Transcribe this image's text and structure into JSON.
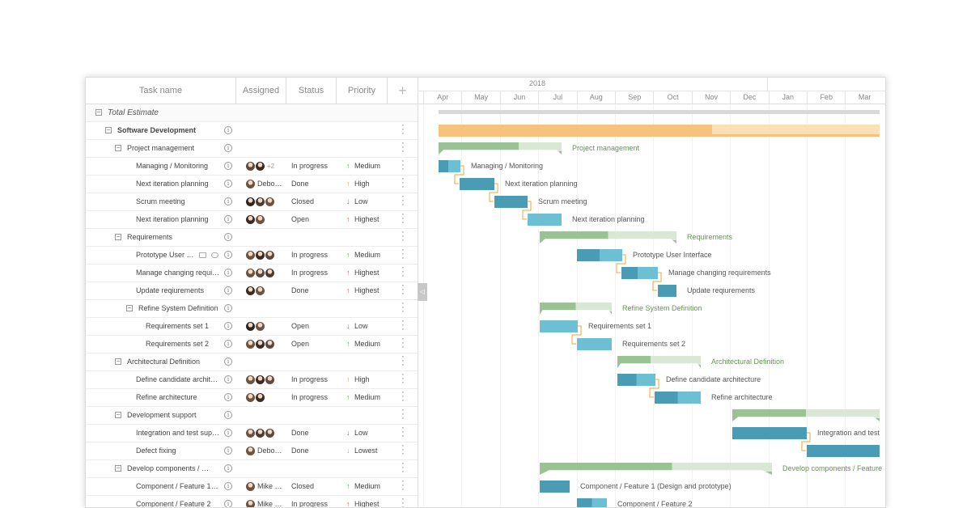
{
  "header": {
    "task_name": "Task name",
    "assigned": "Assigned",
    "status": "Status",
    "priority": "Priority",
    "add": "+"
  },
  "timeline": {
    "year": "2018",
    "months": [
      "Apr",
      "May",
      "Jun",
      "Jul",
      "Aug",
      "Sep",
      "Oct",
      "Nov",
      "Dec",
      "Jan",
      "Feb",
      "Mar"
    ]
  },
  "colors": {
    "summary": "#9bc294",
    "summary_light": "#d9e8d5",
    "task_dark": "#4a9bb4",
    "task_light": "#6dbfd3",
    "project": "#f6c27e",
    "project_light": "#fbe0b5",
    "link": "#f0a437",
    "group_text": "#5b9a4b"
  },
  "rows": [
    {
      "name": "Total Estimate",
      "level": 0,
      "type": "total",
      "toggle": "−"
    },
    {
      "name": "Software Development",
      "level": 1,
      "type": "project",
      "toggle": "−"
    },
    {
      "name": "Project management",
      "level": 2,
      "type": "group",
      "toggle": "−"
    },
    {
      "name": "Managing / Monitoring",
      "level": 3,
      "type": "task",
      "avatars": [
        "#5a4a3e",
        "#3a2a22"
      ],
      "extra": "+2",
      "status": "In progress",
      "arrow": "↑",
      "arrow_color": "#4caf50",
      "priority": "Medium"
    },
    {
      "name": "Next iteration planning",
      "level": 3,
      "type": "task",
      "avatars": [
        "#6b5342"
      ],
      "aname": "Debo…",
      "status": "Done",
      "arrow": "↑",
      "arrow_color": "#f0a437",
      "priority": "High"
    },
    {
      "name": "Scrum meeting",
      "level": 3,
      "type": "task",
      "avatars": [
        "#2f2520",
        "#4a3a30",
        "#6b5342"
      ],
      "status": "Closed",
      "arrow": "↓",
      "arrow_color": "#777",
      "priority": "Low"
    },
    {
      "name": "Next iteration planning",
      "level": 3,
      "type": "task",
      "avatars": [
        "#3a2a22",
        "#6b5342"
      ],
      "status": "Open",
      "arrow": "↑",
      "arrow_color": "#e25b45",
      "priority": "Highest"
    },
    {
      "name": "Requirements",
      "level": 2,
      "type": "group",
      "toggle": "−"
    },
    {
      "name": "Prototype User …",
      "level": 3,
      "type": "task",
      "icons": true,
      "avatars": [
        "#6b5342",
        "#3a2a22",
        "#5a4a3e"
      ],
      "status": "In progress",
      "arrow": "↑",
      "arrow_color": "#4caf50",
      "priority": "Medium"
    },
    {
      "name": "Manage changing requi…",
      "level": 3,
      "type": "task",
      "avatars": [
        "#6b5342",
        "#5a4a3e",
        "#4a3a30"
      ],
      "status": "In progress",
      "arrow": "↑",
      "arrow_color": "#e25b45",
      "priority": "Highest"
    },
    {
      "name": "Update reqiurements",
      "level": 3,
      "type": "task",
      "avatars": [
        "#3a2a22",
        "#6b5342"
      ],
      "status": "Done",
      "arrow": "↑",
      "arrow_color": "#e25b45",
      "priority": "Highest"
    },
    {
      "name": "Refine System Definition",
      "level": 3,
      "type": "group",
      "toggle": "−"
    },
    {
      "name": "Requirements set 1",
      "level": 4,
      "type": "task",
      "avatars": [
        "#2f2520",
        "#6b5342"
      ],
      "status": "Open",
      "arrow": "↓",
      "arrow_color": "#777",
      "priority": "Low"
    },
    {
      "name": "Requirements set 2",
      "level": 4,
      "type": "task",
      "avatars": [
        "#6b5342",
        "#3a2a22",
        "#5a4a3e"
      ],
      "status": "Open",
      "arrow": "↑",
      "arrow_color": "#4caf50",
      "priority": "Medium"
    },
    {
      "name": "Architectural Definition",
      "level": 2,
      "type": "group",
      "toggle": "−"
    },
    {
      "name": "Define candidate archit…",
      "level": 3,
      "type": "task",
      "avatars": [
        "#6b5342",
        "#3a2a22",
        "#5a4a3e"
      ],
      "status": "In progress",
      "arrow": "↑",
      "arrow_color": "#f0a437",
      "priority": "High"
    },
    {
      "name": "Refine architecture",
      "level": 3,
      "type": "task",
      "avatars": [
        "#6b5342",
        "#3a2a22"
      ],
      "status": "In progress",
      "arrow": "↑",
      "arrow_color": "#4caf50",
      "priority": "Medium"
    },
    {
      "name": "Development support",
      "level": 2,
      "type": "group",
      "toggle": "−"
    },
    {
      "name": "Integration and test sup…",
      "level": 3,
      "type": "task",
      "avatars": [
        "#6b5342",
        "#4a3a30",
        "#5a4a3e"
      ],
      "status": "Done",
      "arrow": "↓",
      "arrow_color": "#777",
      "priority": "Low"
    },
    {
      "name": "Defect fixing",
      "level": 3,
      "type": "task",
      "avatars": [
        "#6b5342"
      ],
      "aname": "Debo…",
      "status": "Done",
      "arrow": "↓",
      "arrow_color": "#aaa",
      "priority": "Lowest"
    },
    {
      "name": "Develop components / Fea…",
      "level": 2,
      "type": "group",
      "toggle": "−"
    },
    {
      "name": "Component / Feature 1 …",
      "level": 3,
      "type": "task",
      "avatars": [
        "#6b5342"
      ],
      "aname": "Mike …",
      "status": "Closed",
      "arrow": "↑",
      "arrow_color": "#4caf50",
      "priority": "Medium"
    },
    {
      "name": "Component / Feature 2",
      "level": 3,
      "type": "task",
      "avatars": [
        "#6b5342"
      ],
      "aname": "Mike …",
      "status": "In progress",
      "arrow": "↑",
      "arrow_color": "#e25b45",
      "priority": "Highest"
    }
  ],
  "bars": [
    {
      "label": ""
    },
    {
      "label": ""
    },
    {
      "label": "Project management"
    },
    {
      "label": "Managing / Monitoring"
    },
    {
      "label": "Next iteration planning"
    },
    {
      "label": "Scrum meeting"
    },
    {
      "label": "Next iteration planning"
    },
    {
      "label": "Requirements"
    },
    {
      "label": "Prototype User Interface"
    },
    {
      "label": "Manage changing requirements"
    },
    {
      "label": "Update reqiurements"
    },
    {
      "label": "Refine System Definition"
    },
    {
      "label": "Requirements set 1"
    },
    {
      "label": "Requirements set 2"
    },
    {
      "label": "Architectural Definition"
    },
    {
      "label": "Define candidate architecture"
    },
    {
      "label": "Refine architecture"
    },
    {
      "label": ""
    },
    {
      "label": "Integration and test"
    },
    {
      "label": ""
    },
    {
      "label": "Develop components / Feature"
    },
    {
      "label": "Component / Feature 1 (Design and prototype)"
    },
    {
      "label": "Component / Feature 2"
    }
  ]
}
